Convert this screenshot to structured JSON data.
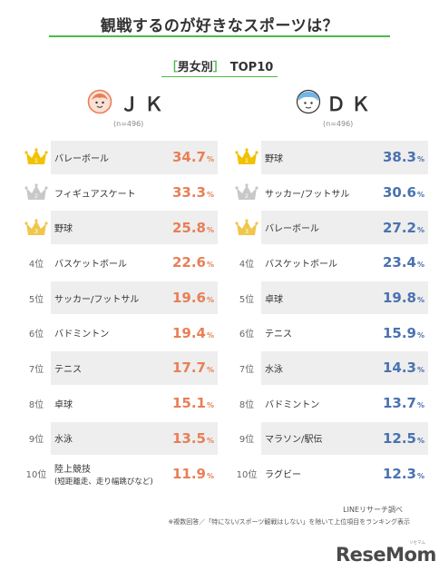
{
  "title": "観戦するのが好きなスポーツは？",
  "subtitle": {
    "open": "［",
    "label": "男女別",
    "close": "］",
    "text": "TOP10"
  },
  "groups": {
    "jk": {
      "label": "ＪＫ",
      "n": "(n=496)"
    },
    "dk": {
      "label": "ＤＫ",
      "n": "(n=496)"
    }
  },
  "colors": {
    "jk_value": "#e87f56",
    "dk_value": "#4a72b0",
    "gold": "#f2c200",
    "silver": "#c8c8c8",
    "bronze": "#f0c64c",
    "accent": "#4db84d"
  },
  "chart_data": [
    {
      "type": "table",
      "group": "ＪＫ",
      "rows": [
        {
          "rank": "1",
          "item": "バレーボール",
          "sub": "",
          "value": "34.7",
          "unit": "%",
          "crown": "gold"
        },
        {
          "rank": "2",
          "item": "フィギュアスケート",
          "sub": "",
          "value": "33.3",
          "unit": "%",
          "crown": "silver"
        },
        {
          "rank": "3",
          "item": "野球",
          "sub": "",
          "value": "25.8",
          "unit": "%",
          "crown": "bronze"
        },
        {
          "rank": "4位",
          "item": "バスケットボール",
          "sub": "",
          "value": "22.6",
          "unit": "%",
          "crown": ""
        },
        {
          "rank": "5位",
          "item": "サッカー/フットサル",
          "sub": "",
          "value": "19.6",
          "unit": "%",
          "crown": ""
        },
        {
          "rank": "6位",
          "item": "バドミントン",
          "sub": "",
          "value": "19.4",
          "unit": "%",
          "crown": ""
        },
        {
          "rank": "7位",
          "item": "テニス",
          "sub": "",
          "value": "17.7",
          "unit": "%",
          "crown": ""
        },
        {
          "rank": "8位",
          "item": "卓球",
          "sub": "",
          "value": "15.1",
          "unit": "%",
          "crown": ""
        },
        {
          "rank": "9位",
          "item": "水泳",
          "sub": "",
          "value": "13.5",
          "unit": "%",
          "crown": ""
        },
        {
          "rank": "10位",
          "item": "陸上競技",
          "sub": "(短距離走、走り幅跳びなど)",
          "value": "11.9",
          "unit": "%",
          "crown": ""
        }
      ]
    },
    {
      "type": "table",
      "group": "ＤＫ",
      "rows": [
        {
          "rank": "1",
          "item": "野球",
          "sub": "",
          "value": "38.3",
          "unit": "%",
          "crown": "gold"
        },
        {
          "rank": "2",
          "item": "サッカー/フットサル",
          "sub": "",
          "value": "30.6",
          "unit": "%",
          "crown": "silver"
        },
        {
          "rank": "3",
          "item": "バレーボール",
          "sub": "",
          "value": "27.2",
          "unit": "%",
          "crown": "bronze"
        },
        {
          "rank": "4位",
          "item": "バスケットボール",
          "sub": "",
          "value": "23.4",
          "unit": "%",
          "crown": ""
        },
        {
          "rank": "5位",
          "item": "卓球",
          "sub": "",
          "value": "19.8",
          "unit": "%",
          "crown": ""
        },
        {
          "rank": "6位",
          "item": "テニス",
          "sub": "",
          "value": "15.9",
          "unit": "%",
          "crown": ""
        },
        {
          "rank": "7位",
          "item": "水泳",
          "sub": "",
          "value": "14.3",
          "unit": "%",
          "crown": ""
        },
        {
          "rank": "8位",
          "item": "バドミントン",
          "sub": "",
          "value": "13.7",
          "unit": "%",
          "crown": ""
        },
        {
          "rank": "9位",
          "item": "マラソン/駅伝",
          "sub": "",
          "value": "12.5",
          "unit": "%",
          "crown": ""
        },
        {
          "rank": "10位",
          "item": "ラグビー",
          "sub": "",
          "value": "12.3",
          "unit": "%",
          "crown": ""
        }
      ]
    }
  ],
  "source": "LINEリサーチ調べ",
  "note": "※複数回答／「特にない/スポーツ観戦はしない」を除いて上位項目をランキング表示",
  "logo": {
    "text": "ReseMom",
    "kana": "リセマム"
  }
}
